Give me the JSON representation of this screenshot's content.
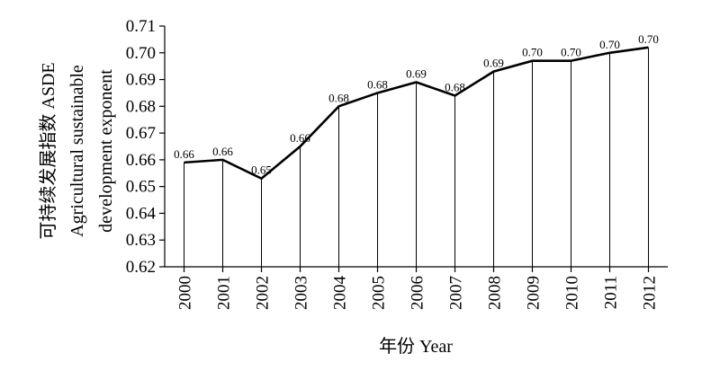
{
  "chart_data": {
    "type": "area",
    "x": [
      "2000",
      "2001",
      "2002",
      "2003",
      "2004",
      "2005",
      "2006",
      "2007",
      "2008",
      "2009",
      "2010",
      "2011",
      "2012"
    ],
    "values": [
      0.659,
      0.66,
      0.653,
      0.665,
      0.68,
      0.685,
      0.689,
      0.684,
      0.693,
      0.697,
      0.697,
      0.7,
      0.702
    ],
    "data_labels": [
      "0.66",
      "0.66",
      "0.65",
      "0.66",
      "0.68",
      "0.68",
      "0.69",
      "0.68",
      "0.69",
      "0.70",
      "0.70",
      "0.70",
      "0.70"
    ],
    "ylabel_lines": [
      "可持续发展指数 ASDE",
      "Agricultural sustainable",
      "development exponent"
    ],
    "xlabel": "年份 Year",
    "ylim": [
      0.62,
      0.71
    ],
    "yticks": [
      "0.62",
      "0.63",
      "0.64",
      "0.65",
      "0.66",
      "0.67",
      "0.68",
      "0.69",
      "0.70",
      "0.71"
    ],
    "grid": false,
    "line_color": "#000000",
    "drop_lines": true
  }
}
